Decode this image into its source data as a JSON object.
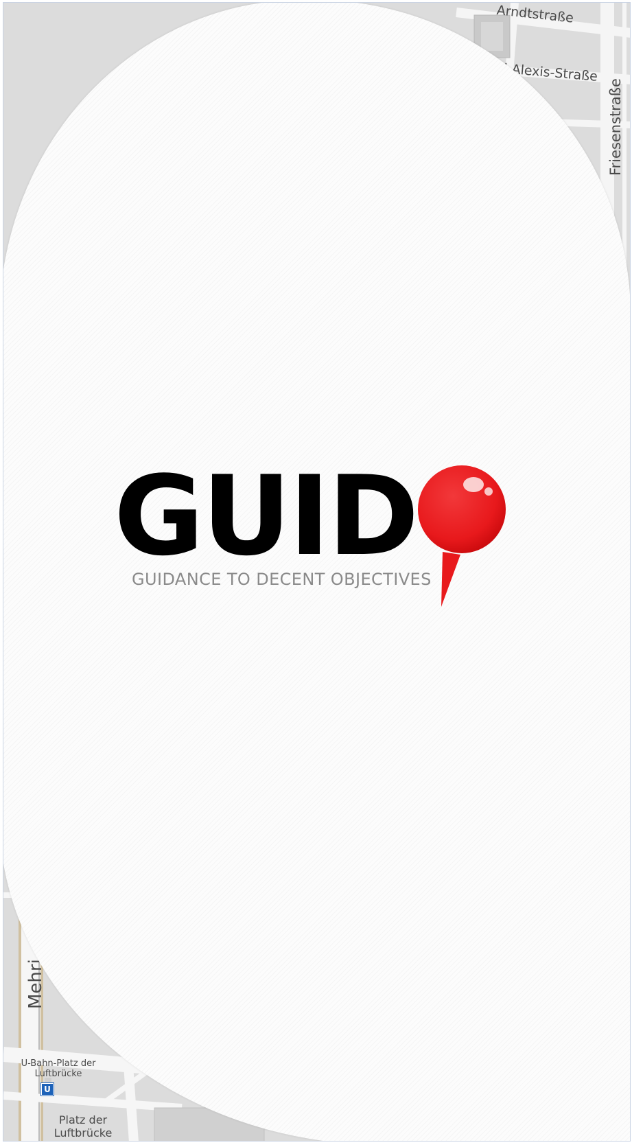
{
  "app": {
    "name": "GUID",
    "tagline": "GUIDANCE TO DECENT OBJECTIVES",
    "logo_icon": "map-pin-icon"
  },
  "map": {
    "streets": {
      "arndtstrasse": "Arndtstraße",
      "willibald_alexis": "ld-Alexis-Straße",
      "friesenstrasse": "Friesenstraße",
      "mehringdamm": "Mehri",
      "ubahn": "U-Bahn-Platz der Luftbrücke",
      "ubahn_line1": "U-Bahn-Platz der",
      "ubahn_line2": "Luftbrücke",
      "ubahn_sign": "U",
      "platz_line1": "Platz der",
      "platz_line2": "Luftbrücke"
    }
  },
  "colors": {
    "pin_red": "#e8191c",
    "logo_text": "#000000",
    "tagline": "#8a8a8a",
    "map_background": "#dcdcdc",
    "road": "#f4f4f4"
  }
}
